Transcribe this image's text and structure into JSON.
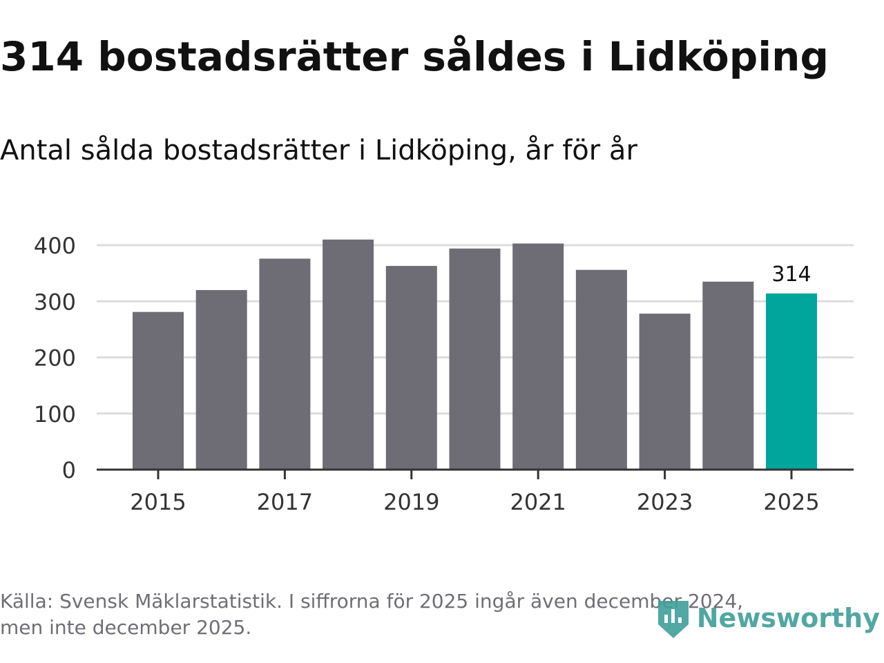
{
  "title": "314 bostadsrätter såldes i Lidköping",
  "subtitle": "Antal sålda bostadsrätter i Lidköping, år för år",
  "source": {
    "line1": "Källa: Svensk Mäklarstatistik. I siffrorna för 2025 ingår även december 2024,",
    "line2": "men inte december 2025."
  },
  "brand": {
    "name": "Newsworthy",
    "icon": "newsworthy-logo-icon"
  },
  "colors": {
    "bar": "#6e6d75",
    "highlight": "#00a69c",
    "grid": "#dddddd",
    "axis": "#333333",
    "tick_text": "#333333"
  },
  "chart_data": {
    "type": "bar",
    "title": "Antal sålda bostadsrätter i Lidköping, år för år",
    "xlabel": "",
    "ylabel": "",
    "categories": [
      "2015",
      "2016",
      "2017",
      "2018",
      "2019",
      "2020",
      "2021",
      "2022",
      "2023",
      "2024",
      "2025"
    ],
    "values": [
      281,
      320,
      376,
      410,
      363,
      394,
      403,
      356,
      278,
      335,
      314
    ],
    "highlight_index": 10,
    "data_labels": [
      {
        "index": 10,
        "text": "314"
      }
    ],
    "x_tick_labels": [
      "2015",
      "2017",
      "2019",
      "2021",
      "2023",
      "2025"
    ],
    "y_ticks": [
      0,
      100,
      200,
      300,
      400
    ],
    "ylim": [
      0,
      410
    ],
    "grid": true,
    "legend": "none"
  }
}
